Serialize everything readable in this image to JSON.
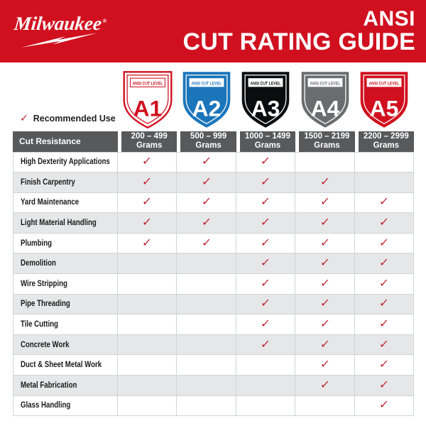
{
  "banner": {
    "brand": "Milwaukee",
    "registered": "®",
    "title_line1": "ANSI",
    "title_line2": "CUT RATING GUIDE"
  },
  "legend": {
    "label": "Recommended Use"
  },
  "check_glyph": "✓",
  "shields": [
    {
      "level": "A1",
      "label": "ANSI CUT LEVEL",
      "colors": {
        "fill": "#FFFFFF",
        "outer_stroke": "#D0101F",
        "inner_stroke": "#D0101F",
        "box_fill": "#FFFFFF",
        "box_stroke": "#D0101F",
        "label_color": "#D0101F",
        "letter_color": "#D0101F"
      }
    },
    {
      "level": "A2",
      "label": "ANSI CUT LEVEL",
      "colors": {
        "fill": "#1B75BB",
        "outer_stroke": "none",
        "inner_stroke": "#FFFFFF",
        "box_fill": "#FFFFFF",
        "box_stroke": "none",
        "label_color": "#1B75BB",
        "letter_color": "#FFFFFF"
      }
    },
    {
      "level": "A3",
      "label": "ANSI CUT LEVEL",
      "colors": {
        "fill": "#0B0C0D",
        "outer_stroke": "none",
        "inner_stroke": "#FFFFFF",
        "box_fill": "#FFFFFF",
        "box_stroke": "none",
        "label_color": "#0B0C0D",
        "letter_color": "#FFFFFF"
      }
    },
    {
      "level": "A4",
      "label": "ANSI CUT LEVEL",
      "colors": {
        "fill": "#6B6C6F",
        "outer_stroke": "none",
        "inner_stroke": "#FFFFFF",
        "box_fill": "#FFFFFF",
        "box_stroke": "none",
        "label_color": "#6B6C6F",
        "letter_color": "#FFFFFF"
      }
    },
    {
      "level": "A5",
      "label": "ANSI CUT LEVEL",
      "colors": {
        "fill": "#D0101F",
        "outer_stroke": "none",
        "inner_stroke": "#FFFFFF",
        "box_fill": "#FFFFFF",
        "box_stroke": "none",
        "label_color": "#D0101F",
        "letter_color": "#FFFFFF"
      }
    }
  ],
  "table": {
    "header_label": "Cut Resistance",
    "columns": [
      {
        "level": "A1",
        "range": "200 – 499",
        "unit": "Grams"
      },
      {
        "level": "A2",
        "range": "500 – 999",
        "unit": "Grams"
      },
      {
        "level": "A3",
        "range": "1000 – 1499",
        "unit": "Grams"
      },
      {
        "level": "A4",
        "range": "1500 – 2199",
        "unit": "Grams"
      },
      {
        "level": "A5",
        "range": "2200 – 2999",
        "unit": "Grams"
      }
    ]
  },
  "chart_data": {
    "type": "table",
    "title": "ANSI CUT RATING GUIDE",
    "columns": [
      "Cut Resistance",
      "A1: 200 – 499 Grams",
      "A2: 500 – 999 Grams",
      "A3: 1000 – 1499 Grams",
      "A4: 1500 – 2199 Grams",
      "A5: 2200 – 2999 Grams"
    ],
    "legend": "✓ = Recommended Use",
    "rows": [
      {
        "label": "High Dexterity Applications",
        "checks": [
          true,
          true,
          true,
          false,
          false
        ]
      },
      {
        "label": "Finish Carpentry",
        "checks": [
          true,
          true,
          true,
          true,
          false
        ]
      },
      {
        "label": "Yard Maintenance",
        "checks": [
          true,
          true,
          true,
          true,
          true
        ]
      },
      {
        "label": "Light Material Handling",
        "checks": [
          true,
          true,
          true,
          true,
          true
        ]
      },
      {
        "label": "Plumbing",
        "checks": [
          true,
          true,
          true,
          true,
          true
        ]
      },
      {
        "label": "Demolition",
        "checks": [
          false,
          false,
          true,
          true,
          true
        ]
      },
      {
        "label": "Wire Stripping",
        "checks": [
          false,
          false,
          true,
          true,
          true
        ]
      },
      {
        "label": "Pipe Threading",
        "checks": [
          false,
          false,
          true,
          true,
          true
        ]
      },
      {
        "label": "Tile Cutting",
        "checks": [
          false,
          false,
          true,
          true,
          true
        ]
      },
      {
        "label": "Concrete Work",
        "checks": [
          false,
          false,
          true,
          true,
          true
        ]
      },
      {
        "label": "Duct & Sheet Metal Work",
        "checks": [
          false,
          false,
          false,
          true,
          true
        ]
      },
      {
        "label": "Metal Fabrication",
        "checks": [
          false,
          false,
          false,
          true,
          true
        ]
      },
      {
        "label": "Glass Handling",
        "checks": [
          false,
          false,
          false,
          false,
          true
        ]
      }
    ]
  },
  "colors": {
    "brand_red": "#D0101F",
    "check_red": "#BE1E2D",
    "header_gray": "#58595B",
    "row_alt_gray": "#E6E7E8",
    "grid_line": "#D2D4D6",
    "level_blue": "#1B75BB",
    "level_black": "#0B0C0D",
    "level_gray": "#6B6C6F"
  }
}
